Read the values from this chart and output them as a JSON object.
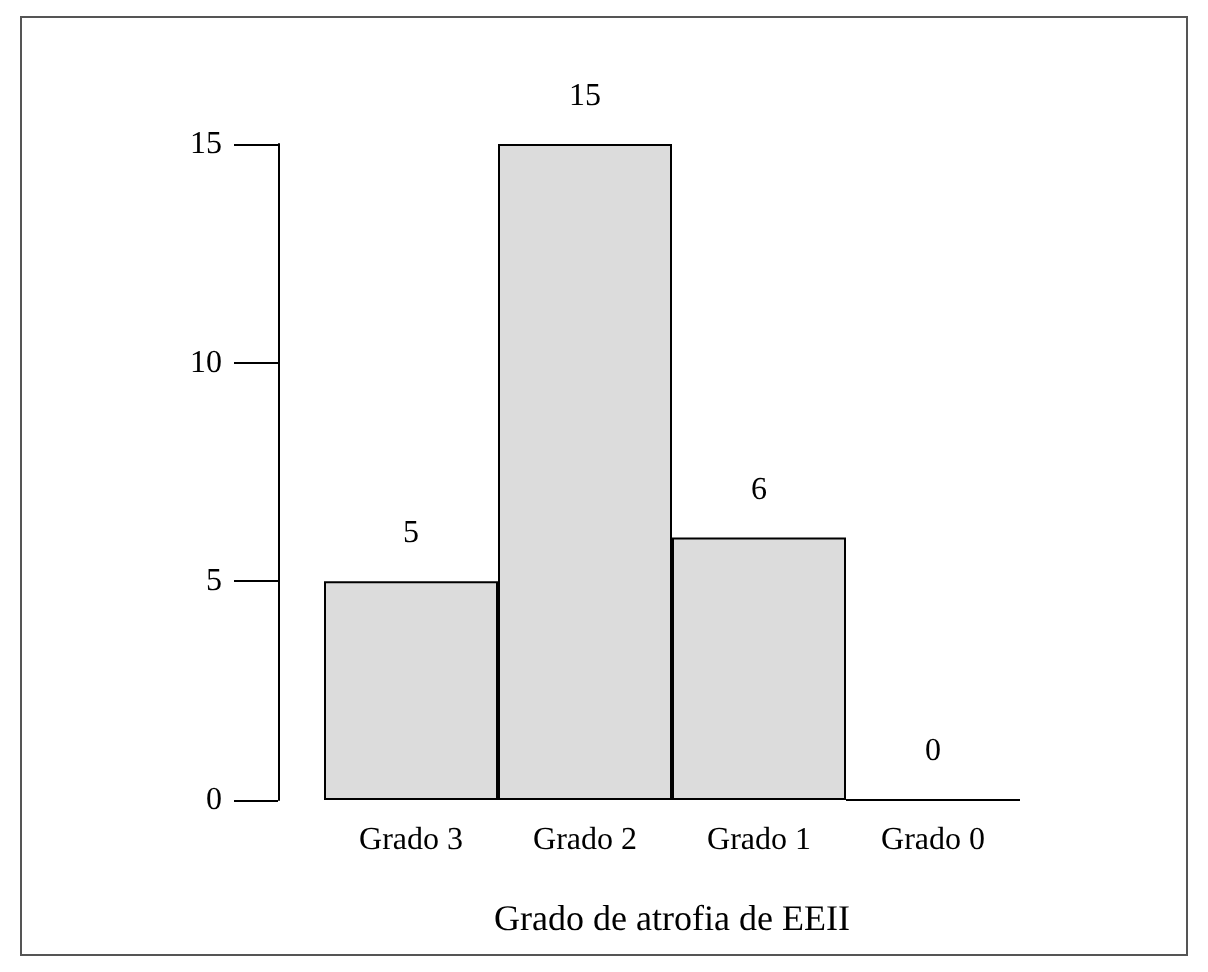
{
  "chart_data": {
    "type": "bar",
    "xlabel": "Grado de atrofia de EEII",
    "categories": [
      "Grado 3",
      "Grado 2",
      "Grado 1",
      "Grado 0"
    ],
    "values": [
      5,
      15,
      6,
      0
    ],
    "color": "#dcdcdc",
    "ylim": [
      0,
      15
    ],
    "yticks": [
      0,
      5,
      10,
      15
    ],
    "grid": false,
    "data_labels": true
  }
}
